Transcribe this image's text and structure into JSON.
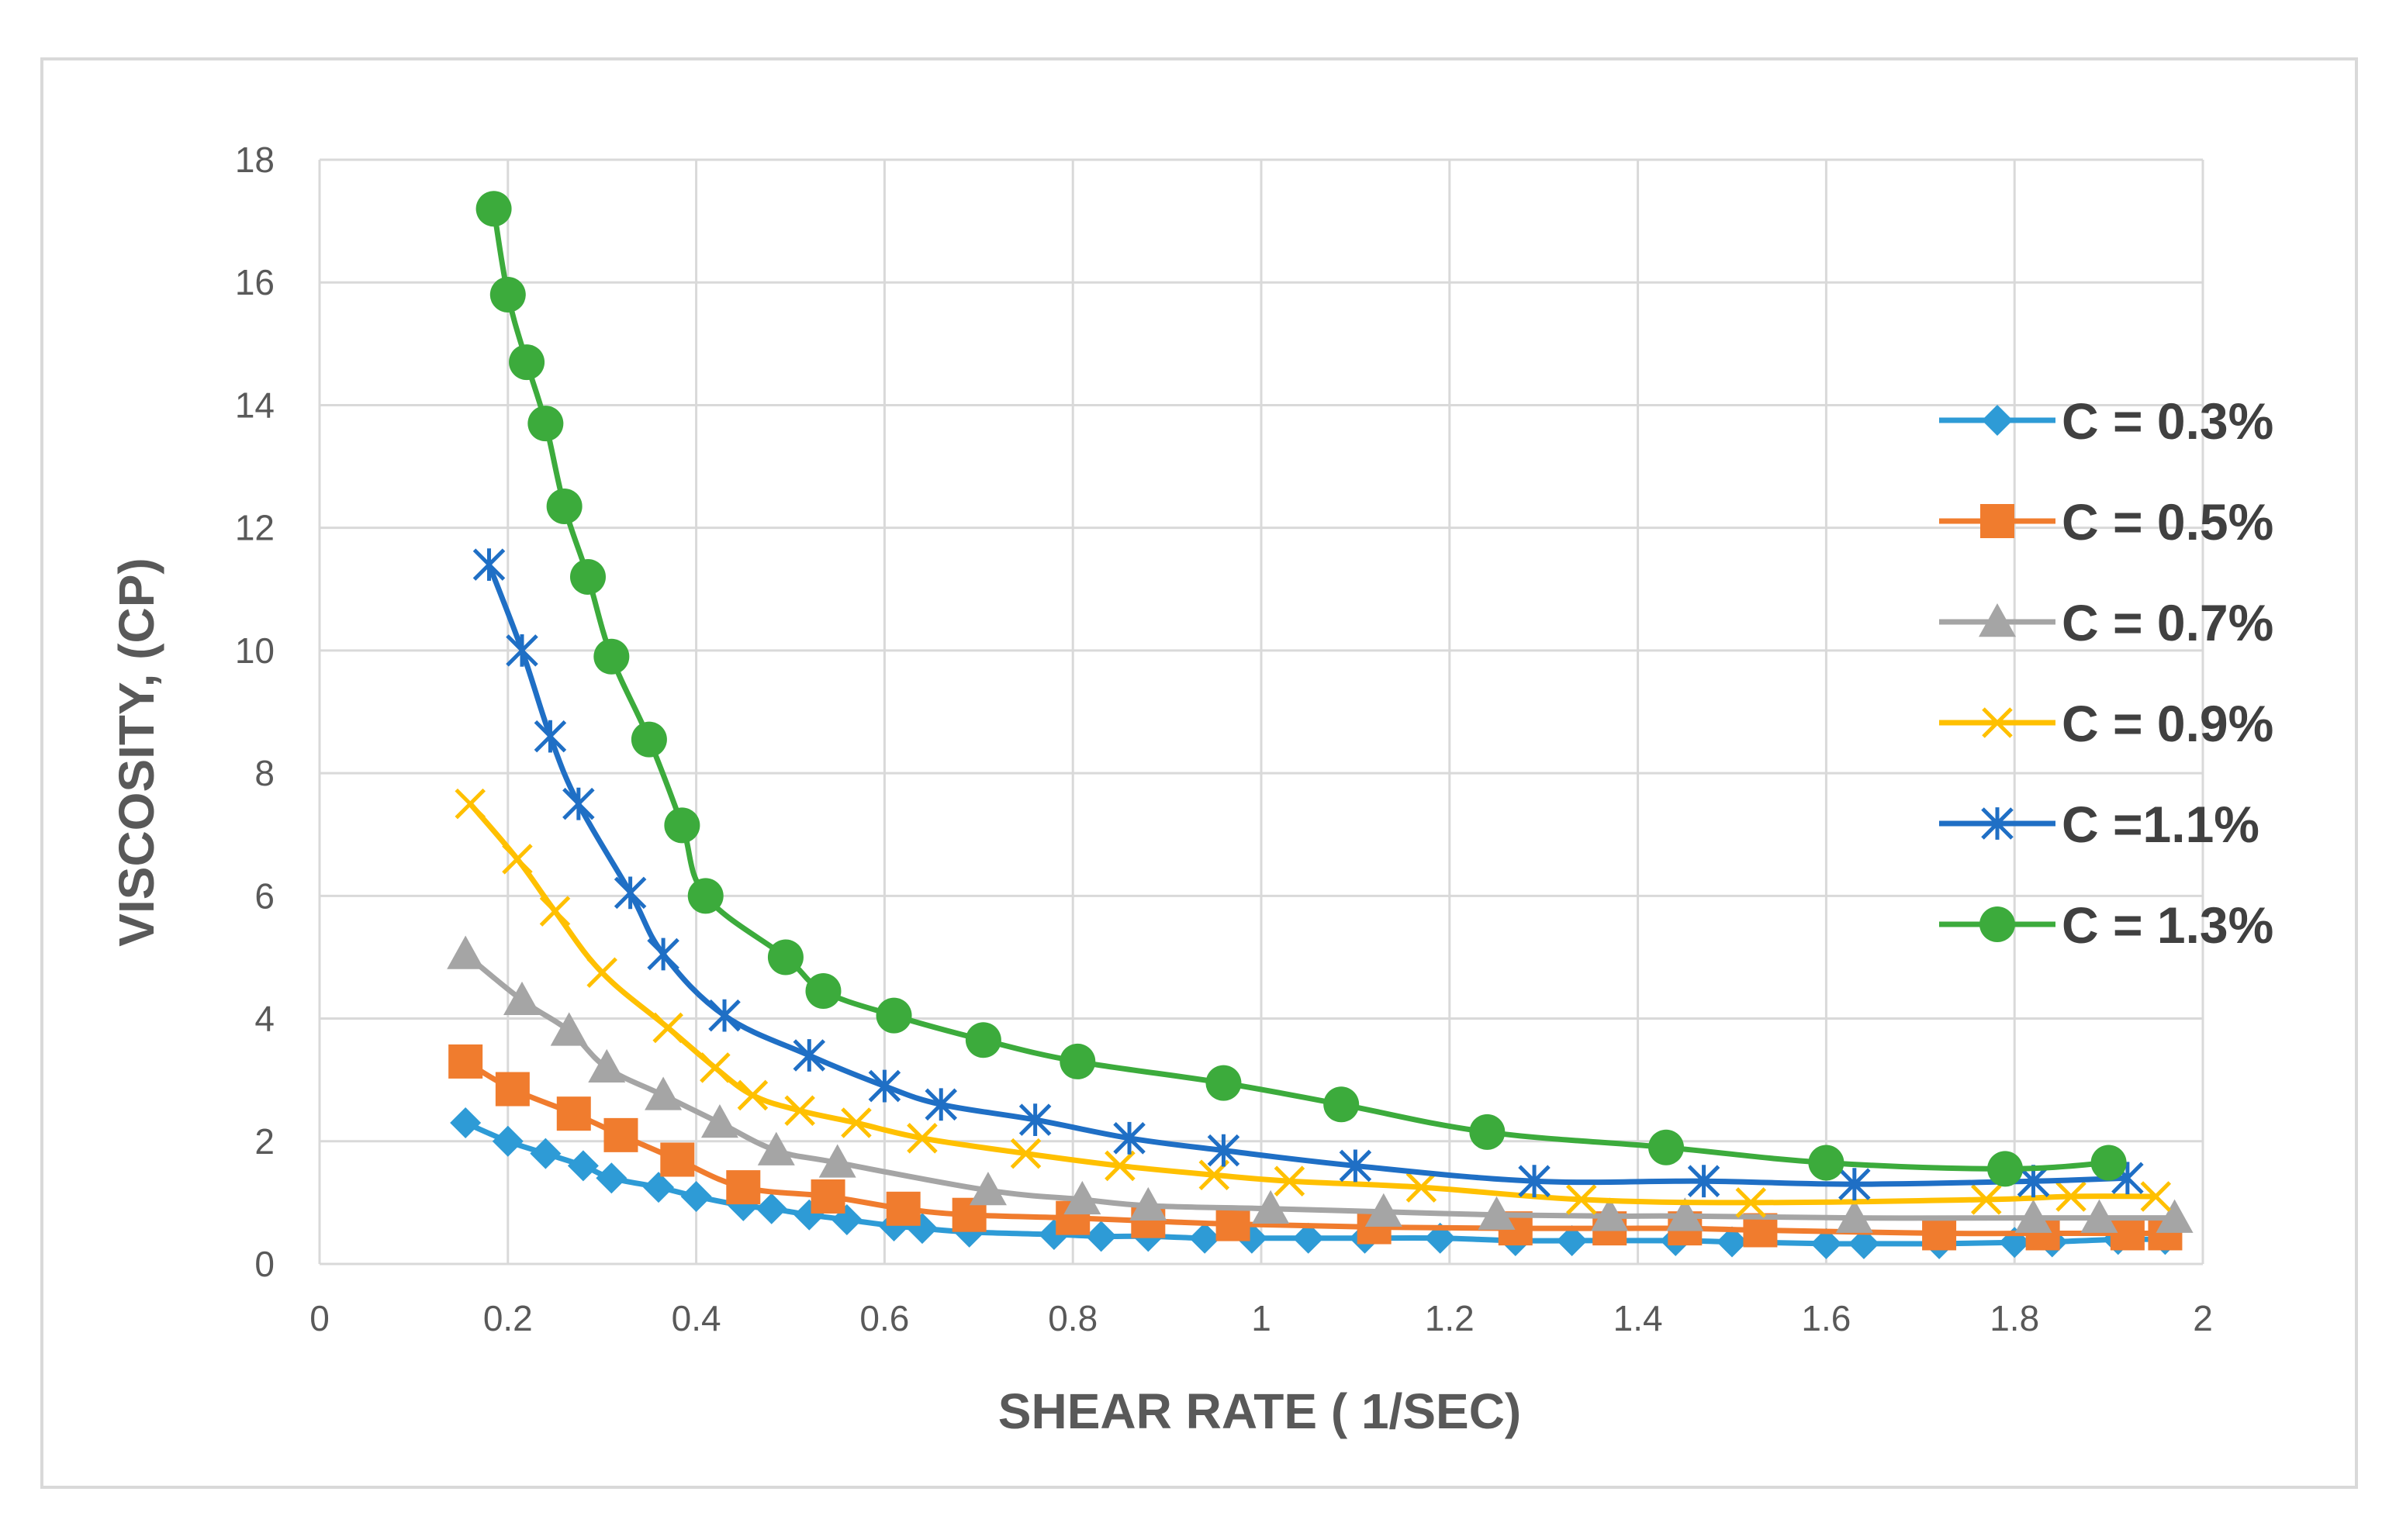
{
  "chart_data": {
    "type": "line",
    "title": "",
    "xlabel": "SHEAR RATE ( 1/SEC)",
    "ylabel": "VISCOSITY, (CP)",
    "xlim": [
      0,
      2
    ],
    "ylim": [
      0,
      18
    ],
    "xticks": [
      "0",
      "0.2",
      "0.4",
      "0.6",
      "0.8",
      "1",
      "1.2",
      "1.4",
      "1.6",
      "1.8",
      "2"
    ],
    "yticks": [
      "0",
      "2",
      "4",
      "6",
      "8",
      "10",
      "12",
      "14",
      "16",
      "18"
    ],
    "grid": true,
    "legend_position": "right",
    "series": [
      {
        "name": "C = 0.3%",
        "color": "#2e9bd6",
        "marker": "diamond",
        "x": [
          0.155,
          0.2,
          0.24,
          0.28,
          0.31,
          0.36,
          0.4,
          0.45,
          0.48,
          0.52,
          0.56,
          0.61,
          0.64,
          0.69,
          0.78,
          0.83,
          0.88,
          0.94,
          0.99,
          1.05,
          1.11,
          1.19,
          1.27,
          1.33,
          1.44,
          1.5,
          1.6,
          1.64,
          1.72,
          1.8,
          1.84,
          1.91,
          1.96
        ],
        "y": [
          2.3,
          2.0,
          1.8,
          1.6,
          1.4,
          1.25,
          1.1,
          0.95,
          0.9,
          0.8,
          0.72,
          0.62,
          0.58,
          0.52,
          0.48,
          0.45,
          0.45,
          0.42,
          0.42,
          0.42,
          0.42,
          0.42,
          0.38,
          0.38,
          0.38,
          0.36,
          0.33,
          0.33,
          0.33,
          0.35,
          0.36,
          0.4,
          0.4
        ]
      },
      {
        "name": "C = 0.5%",
        "color": "#f07c2e",
        "marker": "square",
        "x": [
          0.155,
          0.205,
          0.27,
          0.32,
          0.38,
          0.45,
          0.54,
          0.62,
          0.69,
          0.8,
          0.88,
          0.97,
          1.12,
          1.27,
          1.37,
          1.45,
          1.53,
          1.72,
          1.83,
          1.92,
          1.96
        ],
        "y": [
          3.3,
          2.85,
          2.45,
          2.1,
          1.7,
          1.25,
          1.1,
          0.9,
          0.8,
          0.75,
          0.7,
          0.65,
          0.6,
          0.58,
          0.58,
          0.58,
          0.55,
          0.5,
          0.5,
          0.5,
          0.5
        ]
      },
      {
        "name": "C = 0.7%",
        "color": "#a5a5a5",
        "marker": "triangle",
        "x": [
          0.155,
          0.215,
          0.265,
          0.305,
          0.365,
          0.425,
          0.485,
          0.55,
          0.71,
          0.81,
          0.88,
          1.01,
          1.13,
          1.25,
          1.37,
          1.45,
          1.63,
          1.82,
          1.89,
          1.97
        ],
        "y": [
          5.05,
          4.3,
          3.8,
          3.2,
          2.75,
          2.3,
          1.85,
          1.65,
          1.2,
          1.05,
          0.95,
          0.9,
          0.85,
          0.8,
          0.78,
          0.78,
          0.75,
          0.75,
          0.75,
          0.75
        ]
      },
      {
        "name": "C = 0.9%",
        "color": "#ffc000",
        "marker": "x",
        "x": [
          0.16,
          0.21,
          0.25,
          0.3,
          0.37,
          0.42,
          0.46,
          0.51,
          0.57,
          0.64,
          0.75,
          0.85,
          0.95,
          1.03,
          1.17,
          1.34,
          1.52,
          1.77,
          1.86,
          1.95
        ],
        "y": [
          7.5,
          6.6,
          5.75,
          4.75,
          3.85,
          3.2,
          2.75,
          2.5,
          2.3,
          2.05,
          1.8,
          1.6,
          1.45,
          1.35,
          1.25,
          1.05,
          1.0,
          1.05,
          1.1,
          1.1
        ]
      },
      {
        "name": "C =1.1%",
        "color": "#1f6fc5",
        "marker": "asterisk",
        "x": [
          0.18,
          0.215,
          0.245,
          0.275,
          0.33,
          0.365,
          0.43,
          0.52,
          0.6,
          0.66,
          0.76,
          0.86,
          0.96,
          1.1,
          1.29,
          1.47,
          1.63,
          1.82,
          1.92
        ],
        "y": [
          11.4,
          10.0,
          8.6,
          7.5,
          6.05,
          5.05,
          4.05,
          3.4,
          2.9,
          2.6,
          2.35,
          2.05,
          1.85,
          1.6,
          1.35,
          1.35,
          1.3,
          1.35,
          1.4
        ]
      },
      {
        "name": "C = 1.3%",
        "color": "#3cab3c",
        "marker": "circle",
        "x": [
          0.185,
          0.2,
          0.22,
          0.24,
          0.26,
          0.285,
          0.31,
          0.35,
          0.385,
          0.41,
          0.495,
          0.535,
          0.61,
          0.705,
          0.805,
          0.96,
          1.085,
          1.24,
          1.43,
          1.6,
          1.79,
          1.9
        ],
        "y": [
          17.2,
          15.8,
          14.7,
          13.7,
          12.35,
          11.2,
          9.9,
          8.55,
          7.15,
          6.0,
          5.0,
          4.45,
          4.05,
          3.65,
          3.3,
          2.95,
          2.6,
          2.15,
          1.9,
          1.65,
          1.55,
          1.65
        ]
      }
    ]
  }
}
